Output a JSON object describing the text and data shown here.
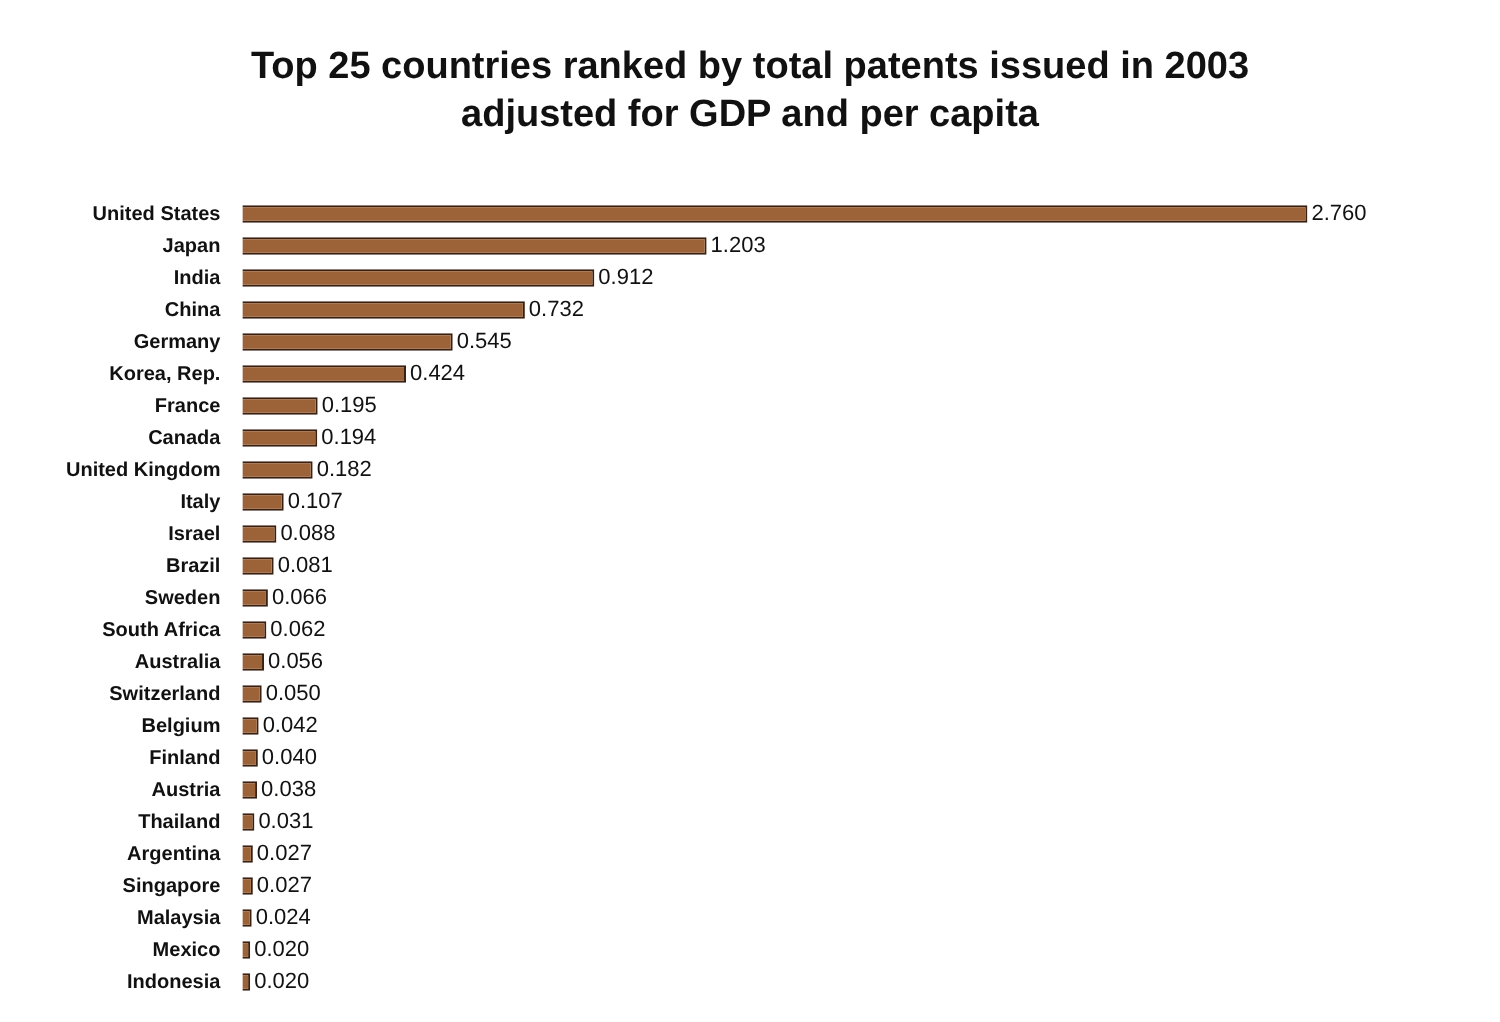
{
  "chart_data": {
    "type": "bar",
    "orientation": "horizontal",
    "title": "Top 25 countries ranked by total patents issued in 2003\nadjusted for GDP and per capita",
    "categories": [
      "United States",
      "Japan",
      "India",
      "China",
      "Germany",
      "Korea, Rep.",
      "France",
      "Canada",
      "United Kingdom",
      "Italy",
      "Israel",
      "Brazil",
      "Sweden",
      "South Africa",
      "Australia",
      "Switzerland",
      "Belgium",
      "Finland",
      "Austria",
      "Thailand",
      "Argentina",
      "Singapore",
      "Malaysia",
      "Mexico",
      "Indonesia"
    ],
    "values": [
      2.76,
      1.203,
      0.912,
      0.732,
      0.545,
      0.424,
      0.195,
      0.194,
      0.182,
      0.107,
      0.088,
      0.081,
      0.066,
      0.062,
      0.056,
      0.05,
      0.042,
      0.04,
      0.038,
      0.031,
      0.027,
      0.027,
      0.024,
      0.02,
      0.02
    ],
    "value_labels": [
      "2.760",
      "1.203",
      "0.912",
      "0.732",
      "0.545",
      "0.424",
      "0.195",
      "0.194",
      "0.182",
      "0.107",
      "0.088",
      "0.081",
      "0.066",
      "0.062",
      "0.056",
      "0.050",
      "0.042",
      "0.040",
      "0.038",
      "0.031",
      "0.027",
      "0.027",
      "0.024",
      "0.020",
      "0.020"
    ],
    "color": "#9c6238"
  }
}
